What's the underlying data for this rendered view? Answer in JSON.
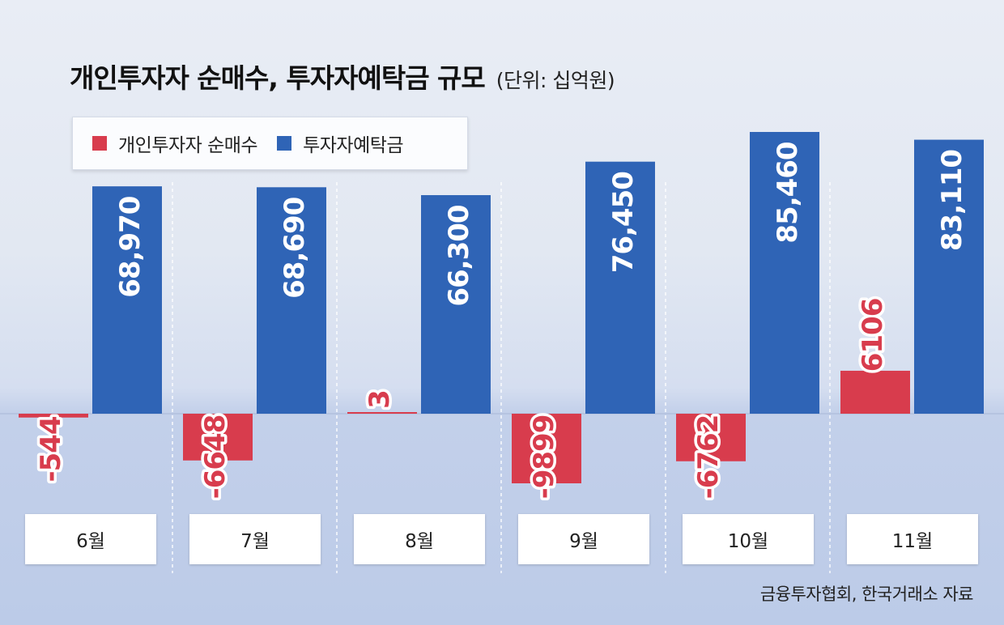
{
  "chart_data": {
    "type": "bar",
    "title": "개인투자자 순매수, 투자자예탁금 규모",
    "unit": "(단위: 십억원)",
    "categories": [
      "6월",
      "7월",
      "8월",
      "9월",
      "10월",
      "11월"
    ],
    "series": [
      {
        "name": "개인투자자 순매수",
        "color": "#d83c4d",
        "values": [
          -544,
          -6648,
          3,
          -9899,
          -6762,
          6106
        ],
        "labels": [
          "-544",
          "-6648",
          "3",
          "-9899",
          "-6762",
          "6106"
        ]
      },
      {
        "name": "투자자예탁금",
        "color": "#2f64b6",
        "values": [
          68970,
          68690,
          66300,
          76450,
          85460,
          83110
        ],
        "labels": [
          "68,970",
          "68,690",
          "66,300",
          "76,450",
          "85,460",
          "83,110"
        ]
      }
    ],
    "legend": "top-left",
    "grid": false,
    "source": "금융투자협회, 한국거래소 자료"
  }
}
